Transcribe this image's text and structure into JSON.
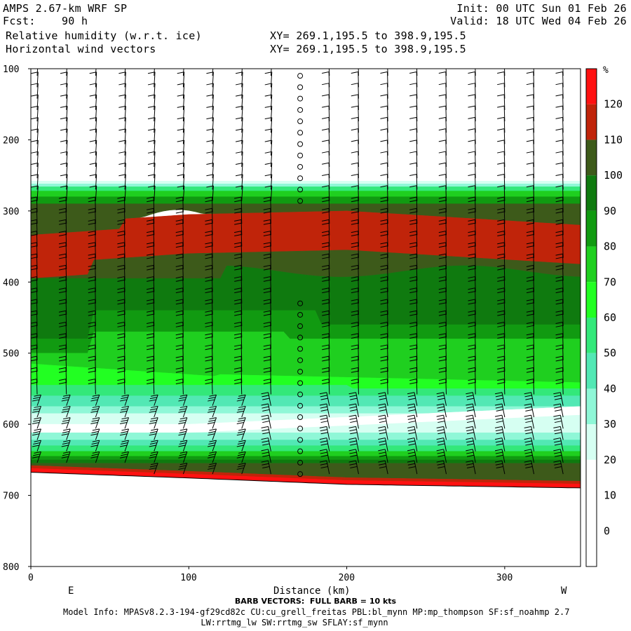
{
  "header": {
    "model": "AMPS 2.67-km WRF SP",
    "fcst": "Fcst:    90 h",
    "init": "Init: 00 UTC Sun 01 Feb 26",
    "valid": "Valid: 18 UTC Wed 04 Feb 26",
    "field1": "Relative humidity (w.r.t. ice)",
    "field2": "Horizontal wind vectors",
    "xy1": "XY= 269.1,195.5 to 398.9,195.5",
    "xy2": "XY= 269.1,195.5 to 398.9,195.5"
  },
  "footer": {
    "barb_note": "BARB VECTORS:  FULL BARB = 10 kts",
    "model_info": "Model Info: MPASv8.2.3-194-gf29cd82c CU:cu_grell_freitas PBL:bl_mynn MP:mp_thompson SF:sf_noahmp 2.7",
    "model_info2": "LW:rrtmg_lw SW:rrtmg_sw SFLAY:sf_mynn"
  },
  "chart_data": {
    "type": "heatmap",
    "title": "Relative humidity (w.r.t. ice)",
    "xlabel": "Distance (km)",
    "ylabel": "",
    "xlim": [
      0,
      348
    ],
    "ylim": [
      800,
      100
    ],
    "x_ticks": [
      0,
      100,
      200,
      300
    ],
    "y_ticks": [
      100,
      200,
      300,
      400,
      500,
      600,
      700,
      800
    ],
    "x_end_labels": {
      "left": "E",
      "right": "W"
    },
    "colorbar": {
      "unit": "%",
      "levels": [
        0,
        10,
        20,
        30,
        40,
        50,
        60,
        70,
        80,
        90,
        100,
        110,
        120
      ],
      "colors": [
        "#ffffff",
        "#ffffff",
        "#ffffff",
        "#d6fff2",
        "#8ff7d7",
        "#52e8b4",
        "#33e87a",
        "#22ff22",
        "#1fcf1f",
        "#119a11",
        "#0f7a0f",
        "#3d5a1a",
        "#c0240a",
        "#ff1111"
      ]
    },
    "layers": [
      {
        "name": "upper-band-top",
        "pressure_hpa_at": [
          [
            0,
            262
          ],
          [
            100,
            262
          ],
          [
            200,
            262
          ],
          [
            348,
            262
          ]
        ]
      },
      {
        "name": "peak-rh-layer",
        "pressure_hpa_at": [
          [
            0,
            340
          ],
          [
            100,
            325
          ],
          [
            200,
            320
          ],
          [
            348,
            340
          ]
        ],
        "rh_percent": 115
      },
      {
        "name": "dry-layer",
        "pressure_hpa_at": [
          [
            0,
            600
          ],
          [
            100,
            600
          ],
          [
            200,
            590
          ],
          [
            348,
            575
          ]
        ],
        "rh_percent": 20
      },
      {
        "name": "surface",
        "pressure_hpa_at": [
          [
            0,
            668
          ],
          [
            100,
            676
          ],
          [
            200,
            685
          ],
          [
            348,
            690
          ]
        ]
      }
    ],
    "wind_barbs": "Horizontal wind vectors"
  }
}
